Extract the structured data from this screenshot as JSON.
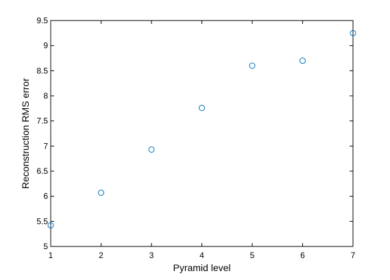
{
  "chart_data": {
    "type": "scatter",
    "title": "",
    "xlabel": "Pyramid level",
    "ylabel": "Reconstruction RMS error",
    "x": [
      1,
      2,
      3,
      4,
      5,
      6,
      7
    ],
    "y": [
      5.42,
      6.07,
      6.93,
      7.76,
      8.6,
      8.7,
      9.25
    ],
    "xlim": [
      1,
      7
    ],
    "ylim": [
      5,
      9.5
    ],
    "xticks": [
      "1",
      "2",
      "3",
      "4",
      "5",
      "6",
      "7"
    ],
    "yticks": [
      "5",
      "5.5",
      "6",
      "6.5",
      "7",
      "7.5",
      "8",
      "8.5",
      "9",
      "9.5"
    ],
    "grid": false,
    "marker": "circle-open",
    "marker_color": "#0072bd"
  }
}
